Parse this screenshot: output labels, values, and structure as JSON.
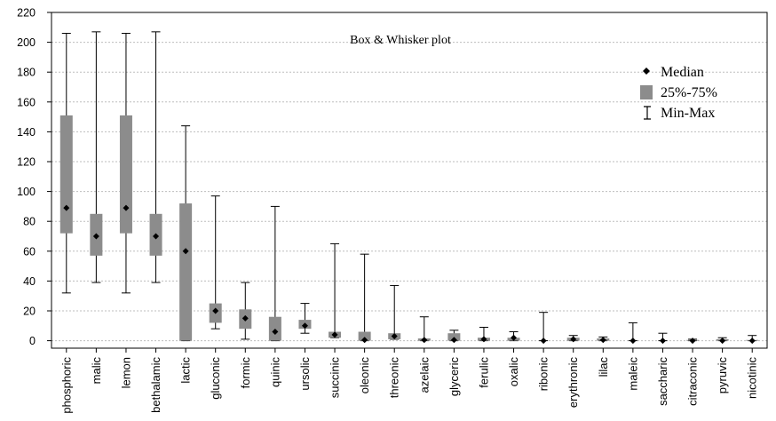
{
  "chart_data": {
    "type": "box",
    "title": "Box & Whisker plot",
    "xlabel": "",
    "ylabel": "",
    "ylim": [
      -5,
      220
    ],
    "yticks": [
      0,
      20,
      40,
      60,
      80,
      100,
      120,
      140,
      160,
      180,
      200,
      220
    ],
    "grid": true,
    "legend_position": "top-right",
    "legend": {
      "median": "Median",
      "box": "25%-75%",
      "whisker": "Min-Max"
    },
    "colors": {
      "box": "#8c8c8c",
      "median": "#000000",
      "whisker": "#000000",
      "grid": "#bdbdbd"
    },
    "categories": [
      "phosphoric",
      "malic",
      "lemon",
      "bethalamic",
      "lactic",
      "gluconic",
      "formic",
      "quinic",
      "ursolic",
      "succinic",
      "oleonic",
      "threonic",
      "azelaic",
      "glyceric",
      "ferulic",
      "oxalic",
      "ribonic",
      "erythronic",
      "lilac",
      "maleic",
      "saccharic",
      "citraconic",
      "pyruvic",
      "nicotinic"
    ],
    "min": [
      32,
      39,
      32,
      39,
      0,
      8,
      1,
      0,
      5,
      2,
      0,
      1,
      0,
      0,
      0,
      0,
      0,
      0,
      0,
      0,
      0,
      0,
      0,
      0
    ],
    "q1": [
      72,
      57,
      72,
      57,
      0,
      12,
      8,
      0,
      8,
      2,
      0,
      1,
      0,
      0,
      0,
      0,
      0,
      0,
      0,
      0,
      0,
      0,
      0,
      0
    ],
    "median": [
      89,
      70,
      89,
      70,
      60,
      20,
      15,
      6,
      10,
      4,
      0.5,
      3,
      0.5,
      0.5,
      1,
      2,
      0,
      1,
      0.5,
      0,
      0,
      0,
      0,
      0
    ],
    "q3": [
      151,
      85,
      151,
      85,
      92,
      25,
      21,
      16,
      14,
      6,
      6,
      5,
      1.5,
      5,
      2,
      2,
      0,
      2,
      1.5,
      0,
      0,
      0.5,
      1,
      0.5
    ],
    "max": [
      206,
      207,
      206,
      207,
      144,
      97,
      39,
      90,
      25,
      65,
      58,
      37,
      16,
      7,
      9,
      6,
      19,
      3.5,
      2.5,
      12,
      5,
      1,
      2,
      3.5
    ]
  }
}
